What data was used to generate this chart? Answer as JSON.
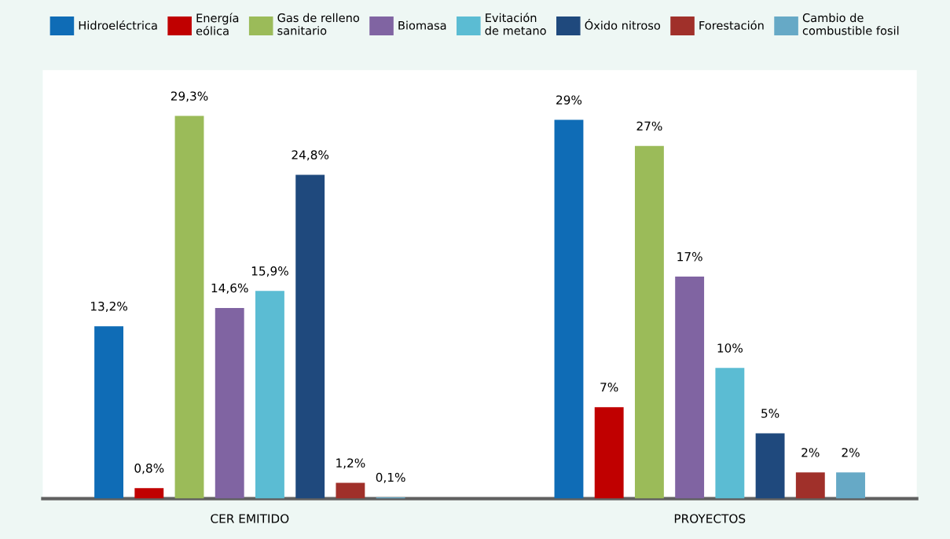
{
  "chart_data": {
    "type": "bar",
    "categories": [
      "CER EMITIDO",
      "PROYECTOS"
    ],
    "series": [
      {
        "name": "Hidroeléctrica",
        "color": "#0f6cb6",
        "values": [
          13.2,
          29
        ],
        "value_labels": [
          "13,2%",
          "29%"
        ]
      },
      {
        "name": "Energía eólica",
        "color": "#c00000",
        "values": [
          0.8,
          7
        ],
        "value_labels": [
          "0,8%",
          "7%"
        ]
      },
      {
        "name": "Gas de relleno sanitario",
        "color": "#9bbb59",
        "values": [
          29.3,
          27
        ],
        "value_labels": [
          "29,3%",
          "27%"
        ]
      },
      {
        "name": "Biomasa",
        "color": "#8064a2",
        "values": [
          14.6,
          17
        ],
        "value_labels": [
          "14,6%",
          "17%"
        ]
      },
      {
        "name": "Evitación de metano",
        "color": "#5bbcd3",
        "values": [
          15.9,
          10
        ],
        "value_labels": [
          "15,9%",
          "10%"
        ]
      },
      {
        "name": "Óxido nitroso",
        "color": "#1f497d",
        "values": [
          24.8,
          5
        ],
        "value_labels": [
          "24,8%",
          "5%"
        ]
      },
      {
        "name": "Forestación",
        "color": "#a0302a",
        "values": [
          1.2,
          2
        ],
        "value_labels": [
          "1,2%",
          "2%"
        ]
      },
      {
        "name": "Cambio de combustible fosil",
        "color": "#66a9c6",
        "values": [
          0.1,
          2
        ],
        "value_labels": [
          "0,1%",
          "2%"
        ]
      }
    ],
    "legend": "top",
    "grid": false
  }
}
